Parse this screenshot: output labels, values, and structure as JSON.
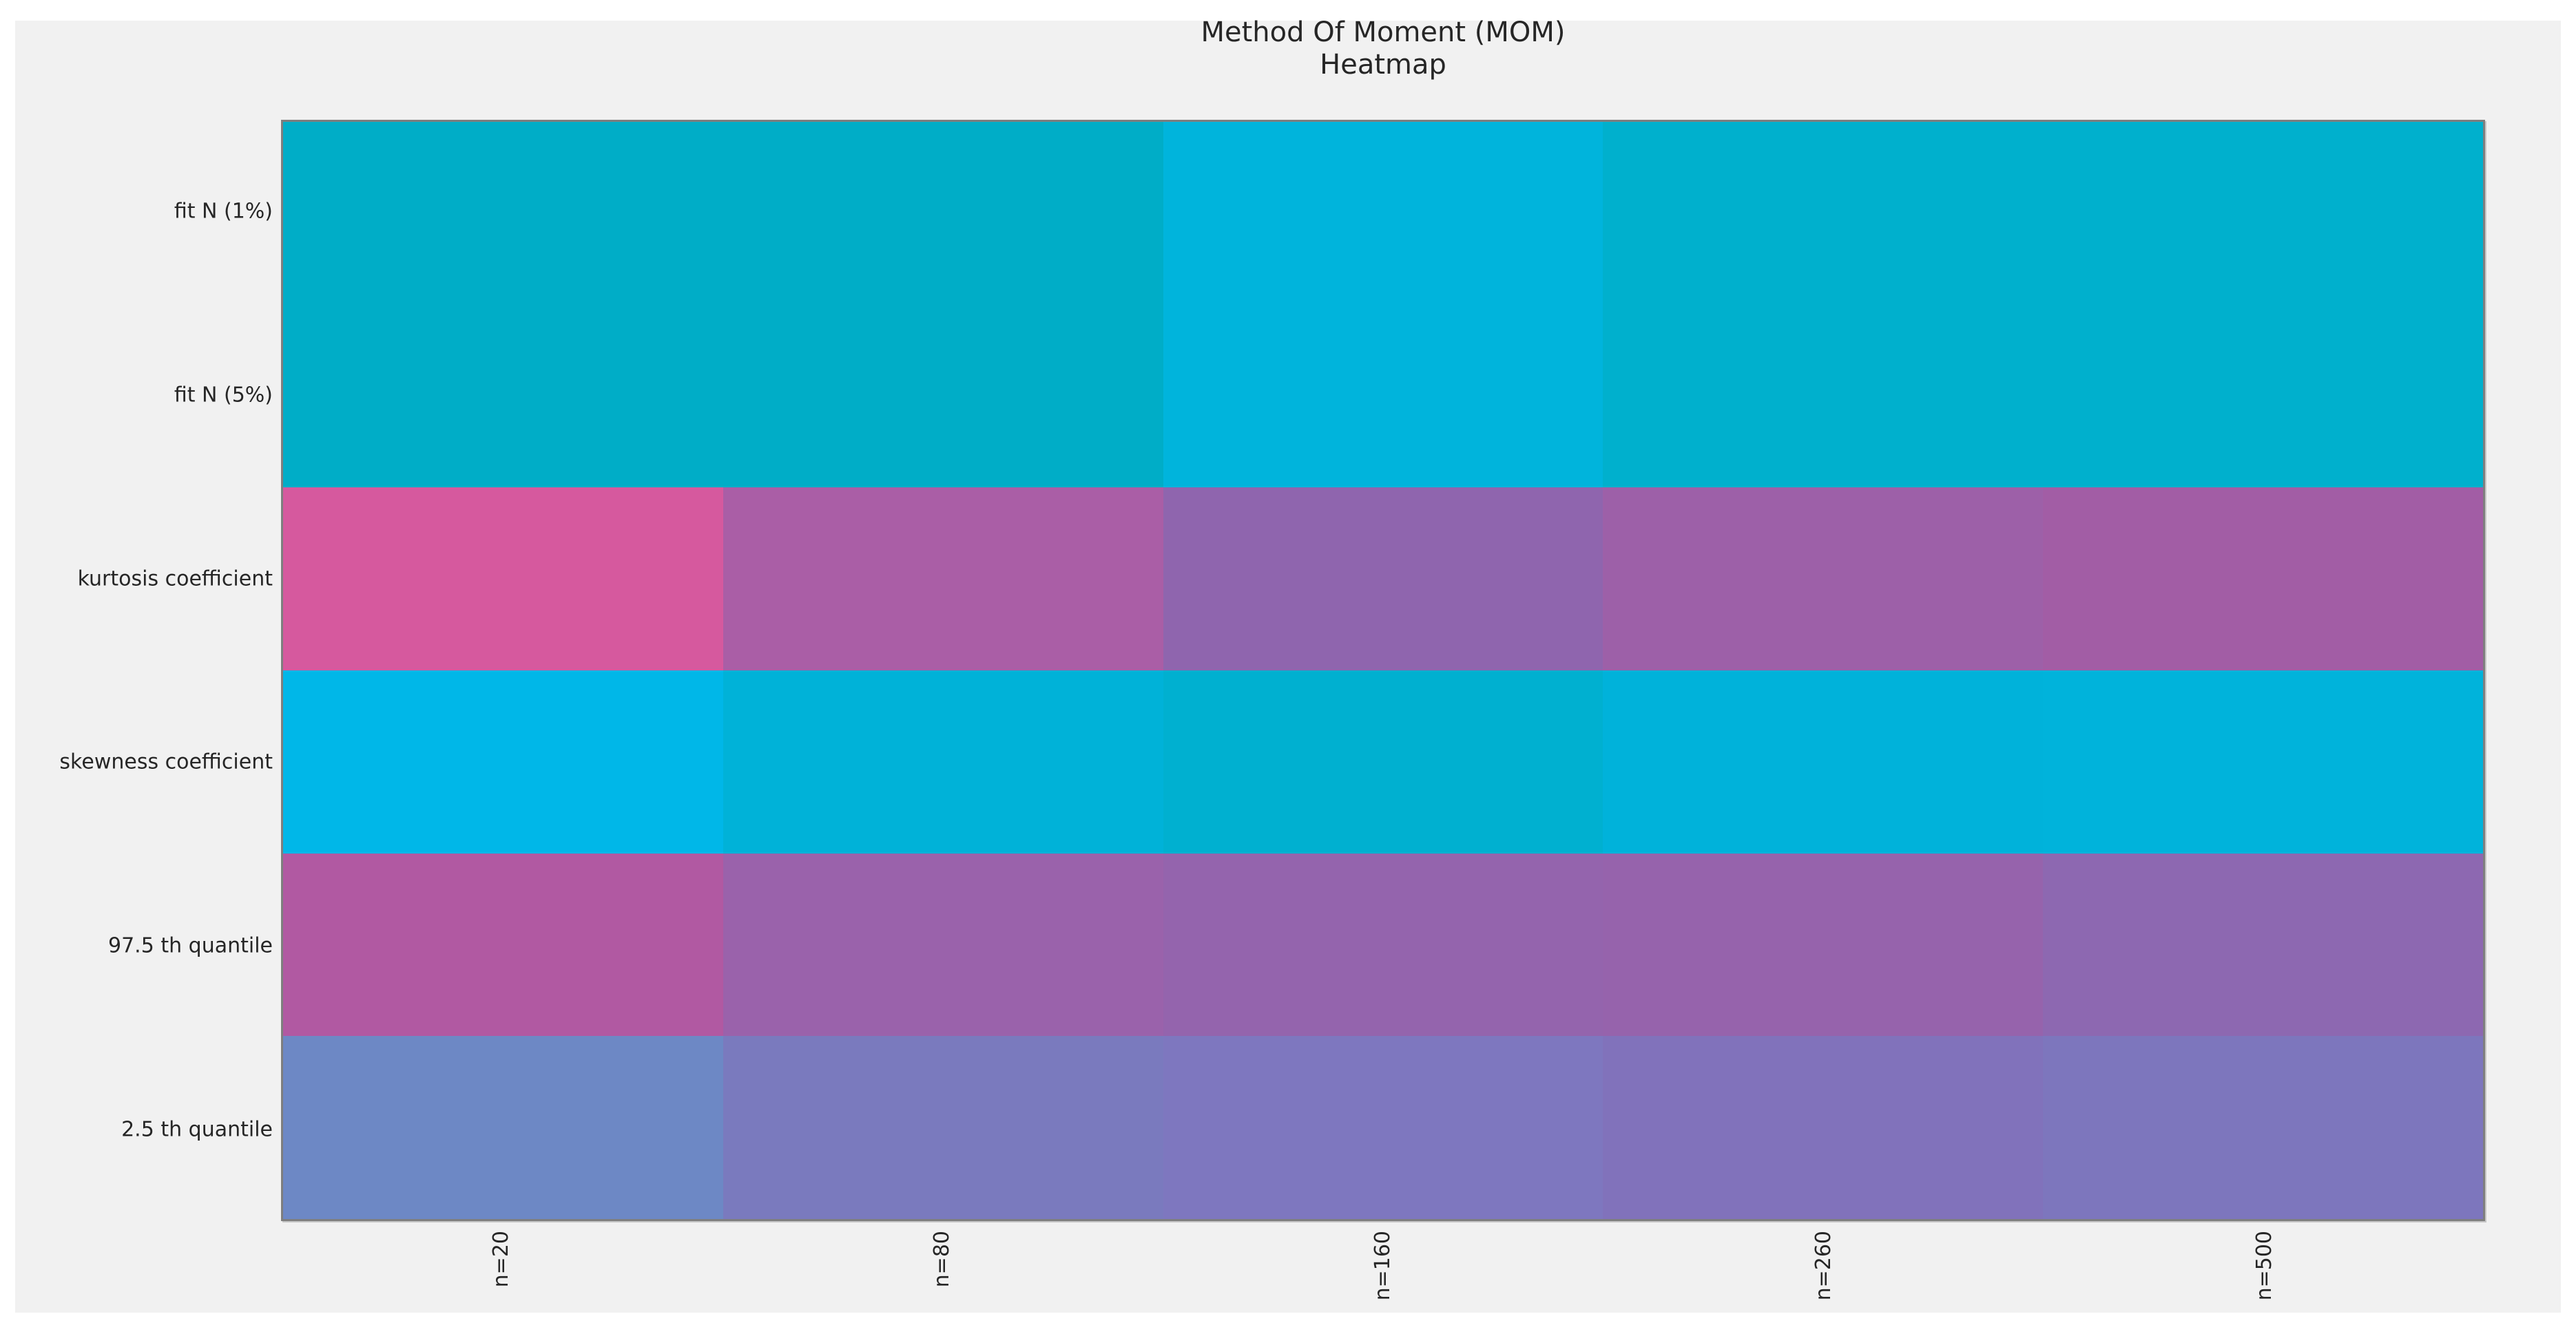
{
  "title": {
    "line1": "Method Of Moment (MOM)",
    "line2": "Heatmap"
  },
  "colors": {
    "page_bg": "#ffffff",
    "figure_bg": "#f1f1f1",
    "spine": "#7e7e7e",
    "text": "#262626"
  },
  "chart_data": {
    "type": "heatmap",
    "title": "Method Of Moment (MOM)\nHeatmap",
    "rows": [
      "fit N (1%)",
      "fit N (5%)",
      "kurtosis coefficient",
      "skewness coefficient",
      "97.5 th quantile",
      "2.5 th quantile"
    ],
    "columns": [
      "n=20",
      "n=80",
      "n=160",
      "n=260",
      "n=500"
    ],
    "cell_colors": [
      [
        "#00adc7",
        "#00adc7",
        "#00b4dc",
        "#00b0cd",
        "#00b0cd"
      ],
      [
        "#00adc7",
        "#00adc7",
        "#00b4dc",
        "#00b0cd",
        "#00b0cd"
      ],
      [
        "#d6599e",
        "#aa5ea6",
        "#8f65ae",
        "#9d60a8",
        "#a25da5"
      ],
      [
        "#00b7e8",
        "#00b2d8",
        "#00b0d0",
        "#00b2da",
        "#00b3db"
      ],
      [
        "#b159a2",
        "#9a62ab",
        "#9464ad",
        "#9663ac",
        "#8d68b1"
      ],
      [
        "#6d88c5",
        "#7a7abe",
        "#7e77bf",
        "#8172bb",
        "#7d76bd"
      ]
    ],
    "legend": "none",
    "grid": false,
    "xlabel": "",
    "ylabel": "",
    "x_tick_rotation_deg": 90
  },
  "layout_note": {}
}
